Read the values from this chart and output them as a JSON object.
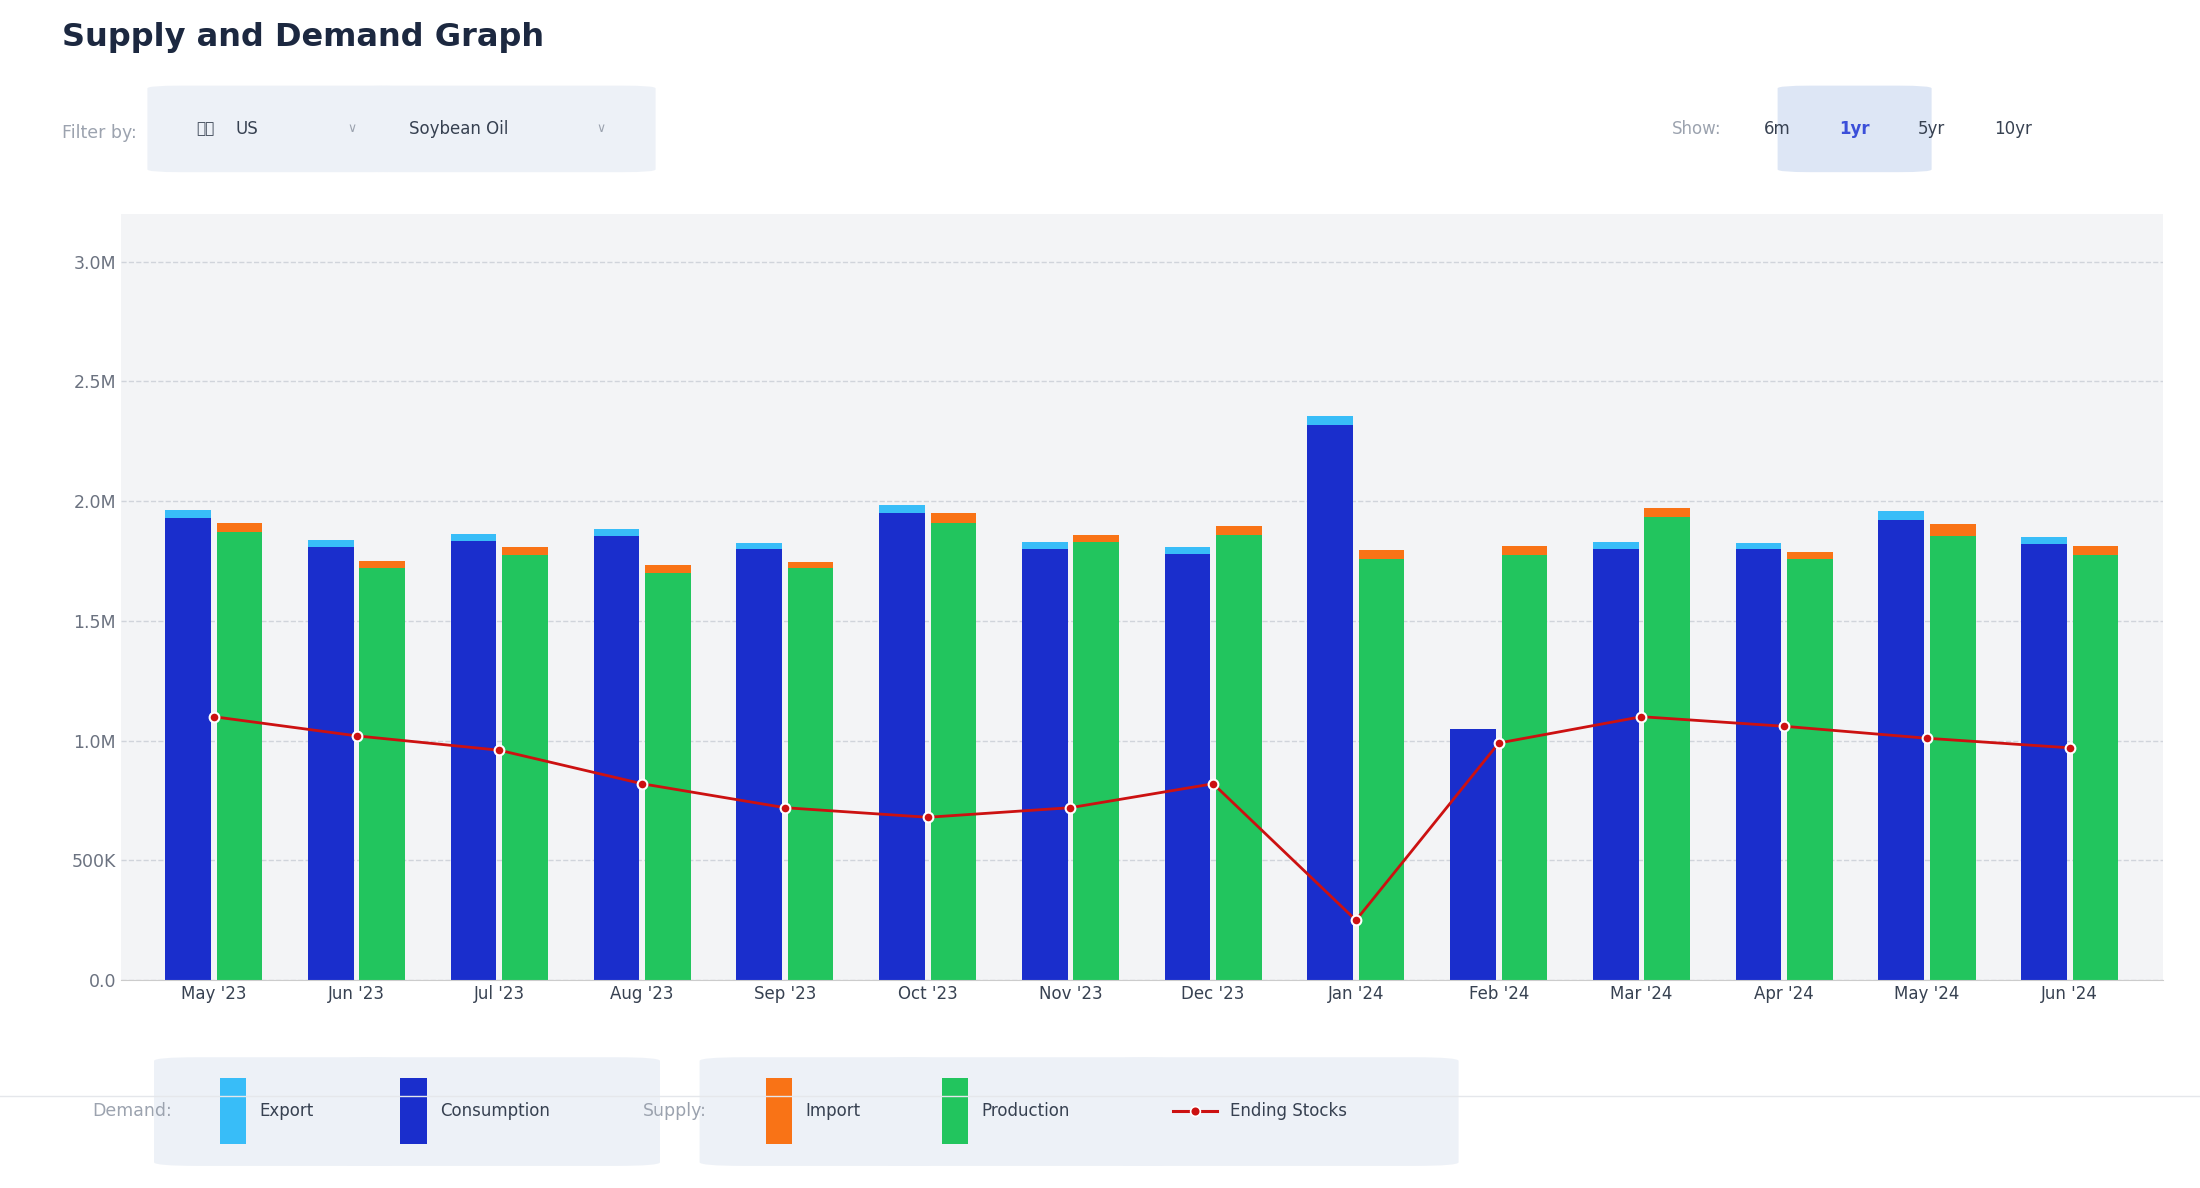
{
  "title": "Supply and Demand Graph",
  "filter_label": "Filter by:",
  "country": "US",
  "commodity": "Soybean Oil",
  "show_label": "Show:",
  "show_options": [
    "6m",
    "1yr",
    "5yr",
    "10yr"
  ],
  "show_selected": "1yr",
  "months": [
    "May '23",
    "Jun '23",
    "Jul '23",
    "Aug '23",
    "Sep '23",
    "Oct '23",
    "Nov '23",
    "Dec '23",
    "Jan '24",
    "Feb '24",
    "Mar '24",
    "Apr '24",
    "May '24",
    "Jun '24"
  ],
  "export_vals": [
    35000,
    30000,
    30000,
    30000,
    25000,
    35000,
    28000,
    28000,
    35000,
    0,
    30000,
    25000,
    40000,
    32000
  ],
  "consumption": [
    1930000,
    1810000,
    1835000,
    1855000,
    1800000,
    1950000,
    1800000,
    1780000,
    2320000,
    1050000,
    1800000,
    1800000,
    1920000,
    1820000
  ],
  "import_vals": [
    40000,
    30000,
    35000,
    32000,
    28000,
    40000,
    30000,
    38000,
    38000,
    38000,
    35000,
    28000,
    48000,
    38000
  ],
  "production": [
    1870000,
    1720000,
    1775000,
    1700000,
    1720000,
    1910000,
    1830000,
    1860000,
    1760000,
    1775000,
    1935000,
    1760000,
    1855000,
    1775000
  ],
  "ending_stocks": [
    1100000,
    1020000,
    960000,
    820000,
    720000,
    680000,
    720000,
    820000,
    250000,
    990000,
    1100000,
    1060000,
    1010000,
    970000
  ],
  "bar_width": 0.32,
  "bar_gap": 0.04,
  "ylim": [
    0,
    3200000
  ],
  "yticks": [
    0,
    500000,
    1000000,
    1500000,
    2000000,
    2500000,
    3000000
  ],
  "ytick_labels": [
    "0.0",
    "500K",
    "1.0M",
    "1.5M",
    "2.0M",
    "2.5M",
    "3.0M"
  ],
  "chart_bg": "#f3f4f6",
  "export_color": "#38bdf8",
  "consumption_color": "#1a2ecc",
  "import_color": "#f97316",
  "production_color": "#22c55e",
  "ending_stocks_color": "#cc1111",
  "grid_color": "#c8cdd5",
  "legend_demand_label": "Demand:",
  "legend_supply_label": "Supply:",
  "legend_export": "Export",
  "legend_consumption": "Consumption",
  "legend_import": "Import",
  "legend_production": "Production",
  "legend_ending_stocks": "Ending Stocks"
}
